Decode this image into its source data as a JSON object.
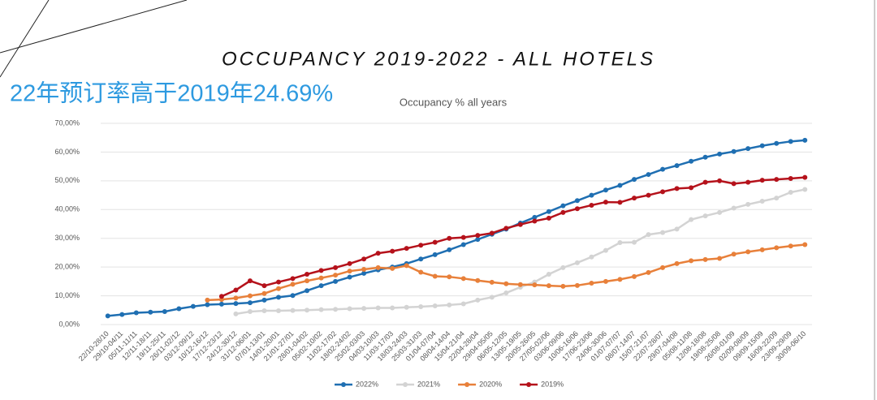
{
  "chart_data": {
    "type": "line",
    "title": "OCCUPANCY 2019-2022 - ALL HOTELS",
    "annotation": "22年预订率高于2019年24.69%",
    "subtitle": "Occupancy % all years",
    "categories": [
      "22/10-28/10",
      "29/10-04/11",
      "05/11-11/11",
      "12/11-18/11",
      "19/11-25/11",
      "26/11-02/12",
      "03/12-09/12",
      "10/12-16/12",
      "17/12-23/12",
      "24/12-30/12",
      "31/12-06/01",
      "07/01-13/01",
      "14/01-20/01",
      "21/01-27/01",
      "28/01-04/02",
      "05/02-10/02",
      "11/02-17/02",
      "18/02-24/02",
      "25/02-03/03",
      "04/03-10/03",
      "11/03-17/03",
      "18/03-24/03",
      "25/03-31/03",
      "01/04-07/04",
      "08/04-14/04",
      "15/04-21/04",
      "22/04-28/04",
      "29/04-05/05",
      "06/05-12/05",
      "13/05-19/05",
      "20/05-26/05",
      "27/05-02/06",
      "03/06-09/06",
      "10/06-16/06",
      "17/06-23/06",
      "24/06-30/06",
      "01/07-07/07",
      "08/07-14/07",
      "15/07-21/07",
      "22/07-28/07",
      "29/07-04/08",
      "05/08-11/08",
      "12/08-18/08",
      "19/08-25/08",
      "26/08-01/09",
      "02/09-08/09",
      "09/09-15/09",
      "16/09-22/09",
      "23/09-29/09",
      "30/09-06/10"
    ],
    "series": [
      {
        "name": "2022%",
        "color": "#1f6fb2",
        "values": [
          3,
          3.5,
          4.1,
          4.3,
          4.5,
          5.5,
          6.3,
          6.9,
          7.1,
          7.3,
          7.6,
          8.5,
          9.5,
          10.1,
          11.8,
          13.5,
          15,
          16.5,
          17.8,
          19,
          20,
          21.2,
          22.8,
          24.3,
          26,
          27.8,
          29.6,
          31.4,
          33.2,
          35.3,
          37.3,
          39.3,
          41.3,
          43.1,
          45,
          46.8,
          48.4,
          50.5,
          52.2,
          54,
          55.3,
          56.8,
          58.2,
          59.3,
          60.2,
          61.2,
          62.2,
          63,
          63.7,
          64.1
        ]
      },
      {
        "name": "2021%",
        "color": "#d3d3d3",
        "values": [
          null,
          null,
          null,
          null,
          null,
          null,
          null,
          null,
          null,
          3.7,
          4.5,
          4.8,
          4.8,
          4.9,
          5,
          5.2,
          5.3,
          5.5,
          5.6,
          5.8,
          5.8,
          6,
          6.2,
          6.5,
          6.8,
          7.2,
          8.5,
          9.5,
          11,
          13,
          14.8,
          17.5,
          19.8,
          21.5,
          23.5,
          25.8,
          28.5,
          28.6,
          31.3,
          32,
          33.2,
          36.5,
          37.8,
          39,
          40.5,
          41.8,
          42.9,
          44,
          46,
          47
        ]
      },
      {
        "name": "2020%",
        "color": "#e8803a",
        "values": [
          null,
          null,
          null,
          null,
          null,
          null,
          null,
          8.5,
          8.7,
          9.2,
          10,
          10.8,
          12.5,
          14,
          15.2,
          16.2,
          17.2,
          18.6,
          19.2,
          19.8,
          19.5,
          20.5,
          18.2,
          16.8,
          16.6,
          16,
          15.3,
          14.7,
          14.2,
          13.9,
          13.8,
          13.5,
          13.3,
          13.6,
          14.4,
          15,
          15.7,
          16.7,
          18.1,
          19.8,
          21.2,
          22.2,
          22.6,
          23,
          24.5,
          25.3,
          26,
          26.7,
          27.3,
          27.8
        ]
      },
      {
        "name": "2019%",
        "color": "#b5121b",
        "values": [
          null,
          null,
          null,
          null,
          null,
          null,
          null,
          null,
          9.8,
          12,
          15.2,
          13.5,
          14.8,
          16,
          17.5,
          18.8,
          19.8,
          21.2,
          22.8,
          24.8,
          25.5,
          26.5,
          27.6,
          28.6,
          30,
          30.3,
          31,
          31.8,
          33.5,
          34.8,
          36,
          37,
          39,
          40.3,
          41.5,
          42.6,
          42.5,
          44,
          45,
          46.2,
          47.3,
          47.6,
          49.5,
          50,
          49,
          49.5,
          50.2,
          50.5,
          50.8,
          51.2
        ]
      }
    ],
    "ylim": [
      0,
      70
    ],
    "yticks": [
      {
        "value": 0,
        "label": "0,00%"
      },
      {
        "value": 10,
        "label": "10,00%"
      },
      {
        "value": 20,
        "label": "20,00%"
      },
      {
        "value": 30,
        "label": "30,00%"
      },
      {
        "value": 40,
        "label": "40,00%"
      },
      {
        "value": 50,
        "label": "50,00%"
      },
      {
        "value": 60,
        "label": "60,00%"
      },
      {
        "value": 70,
        "label": "70,00%"
      }
    ],
    "grid": true,
    "legend": "bottom"
  }
}
